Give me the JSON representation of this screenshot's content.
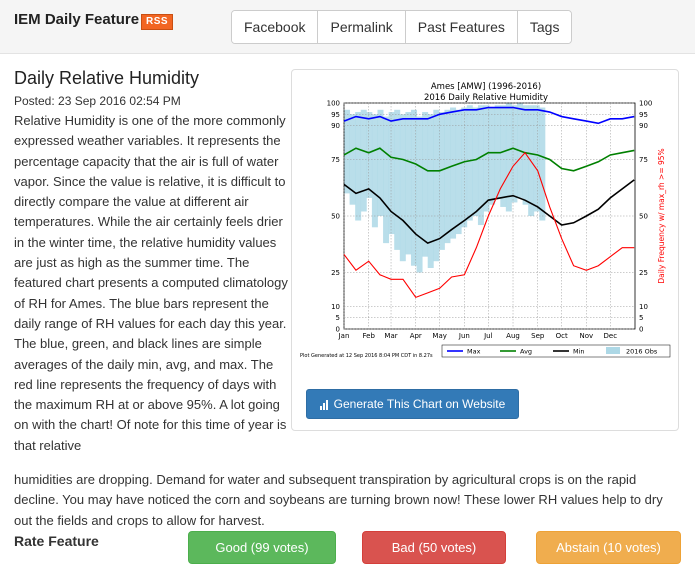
{
  "header": {
    "site_title": "IEM Daily Feature",
    "rss_label": "RSS",
    "nav": [
      "Facebook",
      "Permalink",
      "Past Features",
      "Tags"
    ]
  },
  "article": {
    "title": "Daily Relative Humidity",
    "posted": "Posted: 23 Sep 2016 02:54 PM",
    "body_wrapped": "Relative Humidity is one of the more commonly expressed weather variables. It represents the percentage capacity that the air is full of water vapor. Since the value is relative, it is difficult to directly compare the value at different air temperatures. While the air certainly feels drier in the winter time, the relative humidity values are just as high as the summer time. The featured chart presents a computed climatology of RH for Ames. The blue bars represent the daily range of RH values for each day this year. The blue, green, and black lines are simple averages of the daily min, avg, and max. The red line represents the frequency of days with the maximum RH at or above 95%. A lot going on with the chart! Of note for this time of year is that relative",
    "body_full": "humidities are dropping. Demand for water and subsequent transpiration by agricultural crops is on the rapid decline. You may have noticed the corn and soybeans are turning brown now! These lower RH values help to dry out the fields and crops to allow for harvest."
  },
  "chart_panel": {
    "button_label": "Generate This Chart on Website",
    "button_icon": "bar-chart-icon"
  },
  "chart_data": {
    "type": "line",
    "title": "Ames [AMW] (1996-2016)",
    "subtitle": "2016 Daily Relative Humidity",
    "ylabel_right": "Daily Frequency w/ max_rh >= 95%",
    "footer_note": "Plot Generated at 12 Sep 2016 8:04 PM CDT in 8.27s",
    "xticks": [
      "Jan",
      "Feb",
      "Mar",
      "Apr",
      "May",
      "Jun",
      "Jul",
      "Aug",
      "Sep",
      "Oct",
      "Nov",
      "Dec"
    ],
    "yticks": [
      0,
      5,
      10,
      25,
      50,
      75,
      90,
      95,
      100
    ],
    "ylim": [
      0,
      100
    ],
    "legend": [
      "Max",
      "Avg",
      "Min",
      "2016 Obs"
    ],
    "colors": {
      "max": "#0000ff",
      "avg": "#008000",
      "min": "#000000",
      "freq": "#ff0000",
      "obs": "#add8e6"
    },
    "x_days": [
      1,
      16,
      32,
      46,
      60,
      75,
      91,
      106,
      121,
      136,
      152,
      167,
      182,
      197,
      213,
      228,
      244,
      259,
      274,
      289,
      305,
      320,
      335,
      350,
      365
    ],
    "series": [
      {
        "name": "Max",
        "values": [
          92,
          94,
          93,
          94,
          92,
          93,
          93,
          93,
          95,
          96,
          97,
          97,
          98,
          98,
          98,
          97,
          97,
          96,
          94,
          93,
          92,
          91,
          93,
          93,
          94
        ]
      },
      {
        "name": "Avg",
        "values": [
          77,
          80,
          78,
          80,
          76,
          75,
          73,
          70,
          70,
          72,
          74,
          75,
          78,
          78,
          80,
          78,
          77,
          75,
          71,
          70,
          72,
          74,
          77,
          78,
          79
        ]
      },
      {
        "name": "Min",
        "values": [
          64,
          60,
          62,
          58,
          52,
          48,
          42,
          38,
          40,
          44,
          48,
          52,
          57,
          58,
          59,
          57,
          54,
          50,
          46,
          47,
          50,
          53,
          58,
          62,
          66
        ]
      },
      {
        "name": "freq",
        "values": [
          33,
          26,
          30,
          24,
          22,
          22,
          14,
          16,
          18,
          23,
          24,
          36,
          50,
          62,
          72,
          78,
          70,
          54,
          40,
          28,
          26,
          28,
          32,
          36,
          36
        ]
      }
    ],
    "obs_bars": [
      [
        1,
        60,
        97
      ],
      [
        8,
        55,
        95
      ],
      [
        15,
        48,
        96
      ],
      [
        22,
        52,
        97
      ],
      [
        29,
        58,
        96
      ],
      [
        36,
        45,
        95
      ],
      [
        43,
        50,
        97
      ],
      [
        50,
        38,
        94
      ],
      [
        57,
        42,
        96
      ],
      [
        64,
        35,
        97
      ],
      [
        71,
        30,
        95
      ],
      [
        78,
        33,
        96
      ],
      [
        85,
        28,
        97
      ],
      [
        92,
        25,
        94
      ],
      [
        99,
        32,
        96
      ],
      [
        106,
        27,
        95
      ],
      [
        113,
        30,
        97
      ],
      [
        120,
        35,
        96
      ],
      [
        127,
        38,
        97
      ],
      [
        134,
        40,
        98
      ],
      [
        141,
        42,
        97
      ],
      [
        148,
        45,
        98
      ],
      [
        155,
        48,
        99
      ],
      [
        162,
        50,
        98
      ],
      [
        169,
        46,
        99
      ],
      [
        176,
        52,
        99
      ],
      [
        183,
        55,
        98
      ],
      [
        190,
        58,
        99
      ],
      [
        197,
        54,
        99
      ],
      [
        204,
        52,
        100
      ],
      [
        211,
        56,
        99
      ],
      [
        218,
        58,
        100
      ],
      [
        225,
        55,
        99
      ],
      [
        232,
        50,
        99
      ],
      [
        239,
        52,
        99
      ],
      [
        246,
        48,
        98
      ]
    ]
  },
  "rating": {
    "label": "Rate Feature",
    "good": "Good (99 votes)",
    "bad": "Bad (50 votes)",
    "abstain": "Abstain (10 votes)"
  }
}
